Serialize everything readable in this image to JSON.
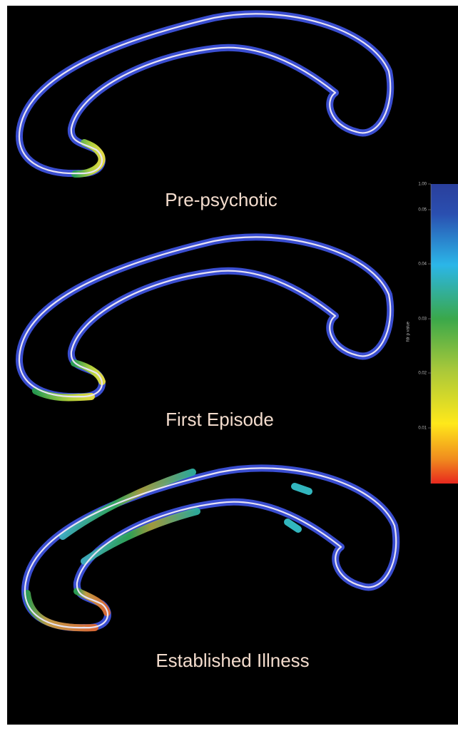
{
  "panels": [
    {
      "label": "Pre-psychotic"
    },
    {
      "label": "First Episode"
    },
    {
      "label": "Established Illness"
    }
  ],
  "colorbar": {
    "label": "fdr p value",
    "ticks": [
      "1.00",
      "0.05",
      "0.04",
      "0.03",
      "0.02",
      "0.01"
    ]
  }
}
